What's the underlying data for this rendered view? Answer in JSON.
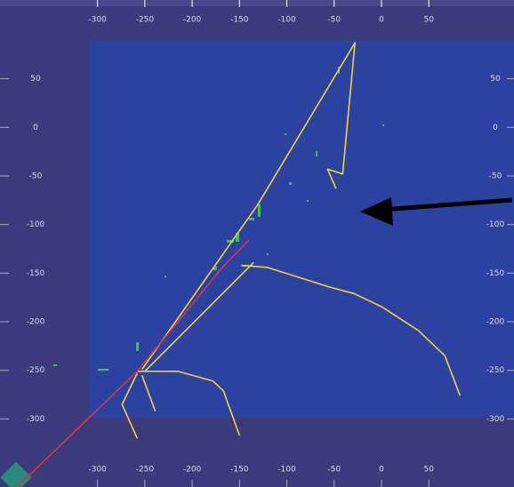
{
  "chart_data": {
    "type": "line",
    "xlim": [
      -403,
      140
    ],
    "ylim": [
      -370,
      131
    ],
    "xticks": [
      -300,
      -250,
      -200,
      -150,
      -100,
      -50,
      0,
      50
    ],
    "yticks": [
      50,
      0,
      -50,
      -100,
      -150,
      -200,
      -250,
      -300
    ],
    "series": [
      {
        "color": "#f0d23c",
        "x": [
          -48,
          -57,
          -41,
          -28,
          -131,
          -253
        ],
        "values": [
          -63,
          -43,
          -48,
          87,
          -80,
          -249
        ]
      },
      {
        "color": "#f0d23c",
        "x": [
          -135,
          -250
        ],
        "values": [
          -139,
          -251
        ]
      },
      {
        "color": "#f0d23c",
        "x": [
          -148,
          -121,
          -56,
          -29,
          1,
          39,
          67,
          83
        ],
        "values": [
          -142,
          -144,
          -164,
          -171,
          -185,
          -209,
          -235,
          -276
        ]
      },
      {
        "color": "#f0d23c",
        "x": [
          -258,
          -215,
          -178,
          -167,
          -164,
          -150
        ],
        "values": [
          -251,
          -251,
          -261,
          -271,
          -279,
          -317
        ]
      },
      {
        "color": "#f0d23c",
        "x": [
          -258,
          -274,
          -258
        ],
        "values": [
          -253,
          -285,
          -320
        ]
      },
      {
        "color": "#f0d23c",
        "x": [
          -253,
          -239
        ],
        "values": [
          -255,
          -292
        ]
      },
      {
        "color": "#d8344a",
        "x": [
          -385,
          -258,
          -168,
          -140
        ],
        "values": [
          -370,
          -251,
          -144,
          -116
        ]
      }
    ]
  }
}
